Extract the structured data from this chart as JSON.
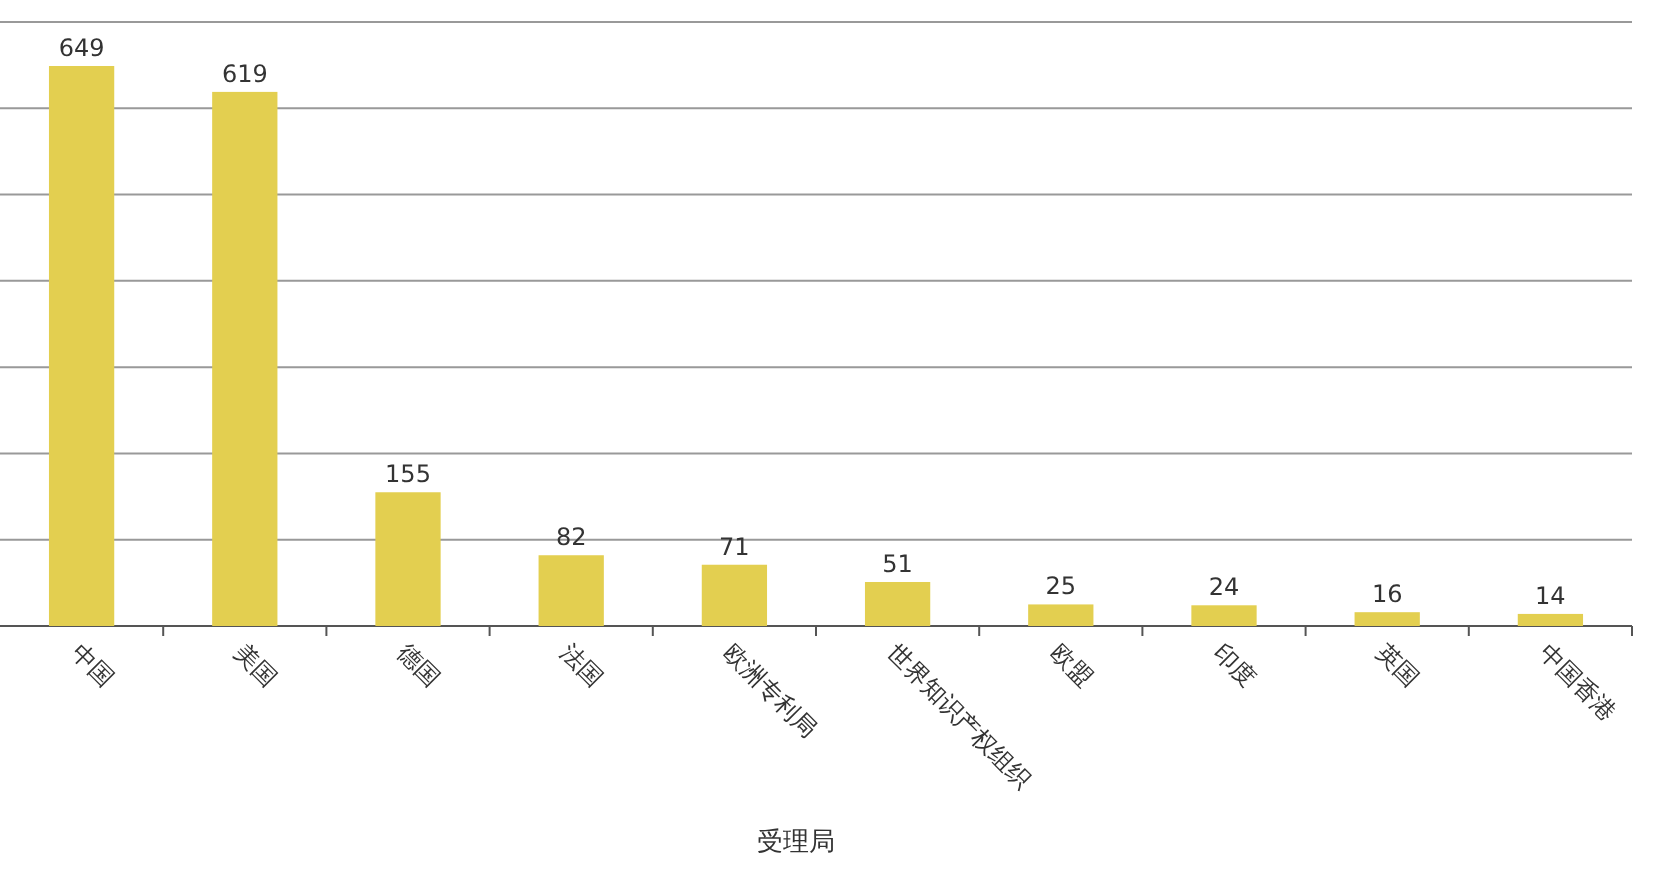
{
  "chart_data": {
    "type": "bar",
    "xlabel": "受理局",
    "categories": [
      "中国",
      "美国",
      "德国",
      "法国",
      "欧洲专利局",
      "世界知识产权组织",
      "欧盟",
      "印度",
      "英国",
      "中国香港"
    ],
    "values": [
      649,
      619,
      155,
      82,
      71,
      51,
      25,
      24,
      16,
      14
    ],
    "color": "#e3cf50",
    "data_labels": true,
    "grid": "y",
    "tick_labels": "x",
    "ylim": [
      0,
      700
    ],
    "yticks": [
      {
        "value": 0,
        "label": null
      },
      {
        "value": 100,
        "label": null
      },
      {
        "value": 200,
        "label": null
      },
      {
        "value": 300,
        "label": null
      },
      {
        "value": 400,
        "label": null
      },
      {
        "value": 500,
        "label": null
      },
      {
        "value": 600,
        "label": null
      },
      {
        "value": 700,
        "label": null
      }
    ]
  }
}
